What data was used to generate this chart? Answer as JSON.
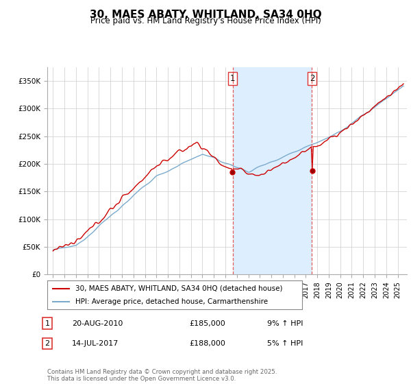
{
  "title": "30, MAES ABATY, WHITLAND, SA34 0HQ",
  "subtitle": "Price paid vs. HM Land Registry's House Price Index (HPI)",
  "legend_entry1": "30, MAES ABATY, WHITLAND, SA34 0HQ (detached house)",
  "legend_entry2": "HPI: Average price, detached house, Carmarthenshire",
  "annotation1_label": "1",
  "annotation1_date": "20-AUG-2010",
  "annotation1_price": "£185,000",
  "annotation1_hpi": "9% ↑ HPI",
  "annotation2_label": "2",
  "annotation2_date": "14-JUL-2017",
  "annotation2_price": "£188,000",
  "annotation2_hpi": "5% ↑ HPI",
  "vline1_x": 2010.63,
  "vline2_x": 2017.54,
  "sale1_price": 185000,
  "sale2_price": 188000,
  "footnote": "Contains HM Land Registry data © Crown copyright and database right 2025.\nThis data is licensed under the Open Government Licence v3.0.",
  "ylim": [
    0,
    375000
  ],
  "xlim": [
    1994.5,
    2025.8
  ],
  "red_color": "#cc0000",
  "blue_fill_color": "#ddeeff",
  "blue_line_color": "#7aaacc",
  "plot_bg": "#ffffff",
  "vline_color": "#dd3333",
  "grid_color": "#cccccc",
  "title_fontsize": 11,
  "subtitle_fontsize": 8.5
}
